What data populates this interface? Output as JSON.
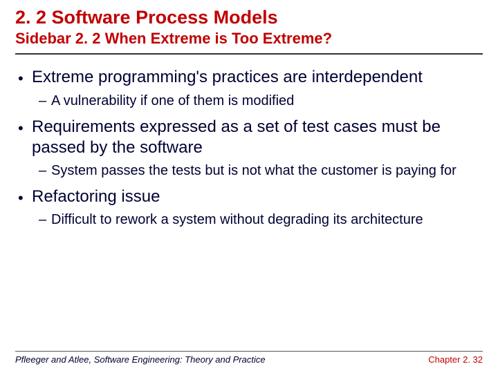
{
  "colors": {
    "heading": "#c00000",
    "body_text": "#000033",
    "divider": "#333333",
    "background": "#ffffff"
  },
  "typography": {
    "title_fontsize": 27,
    "subtitle_fontsize": 22,
    "level1_fontsize": 24,
    "level2_fontsize": 20,
    "footer_fontsize": 13,
    "font_family": "Lucida Sans"
  },
  "title": "2. 2 Software Process Models",
  "subtitle": "Sidebar 2. 2 When Extreme is Too Extreme?",
  "bullets": [
    {
      "text": "Extreme programming's practices are interdependent",
      "sub": [
        {
          "text": "A vulnerability if one of them is modified"
        }
      ]
    },
    {
      "text": "Requirements expressed as a set of test cases must be passed by the software",
      "sub": [
        {
          "text": "System passes the tests but is not what the customer is paying for"
        }
      ]
    },
    {
      "text": "Refactoring issue",
      "sub": [
        {
          "text": "Difficult to rework a system without degrading its architecture"
        }
      ]
    }
  ],
  "footer": {
    "left": "Pfleeger and Atlee, Software Engineering: Theory and Practice",
    "right": "Chapter 2. 32"
  }
}
